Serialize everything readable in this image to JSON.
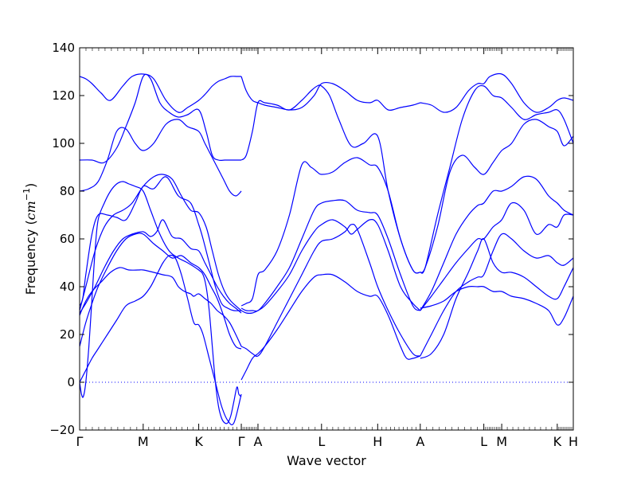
{
  "colors": {
    "band": "#0000ff",
    "zero_line": "#0000ff",
    "axes": "#000000",
    "background": "#ffffff"
  },
  "chart_data": {
    "type": "line",
    "title": "",
    "xlabel": "Wave vector",
    "ylabel_main": "Frequency (",
    "ylabel_unit": "cm",
    "ylabel_exp": "−1",
    "ylabel_close": ")",
    "ylim": [
      -20,
      140
    ],
    "yticks": [
      -20,
      0,
      20,
      40,
      60,
      80,
      100,
      120,
      140
    ],
    "xlim": [
      0,
      800
    ],
    "high_symmetry_points": [
      {
        "label": "Γ",
        "x": 0
      },
      {
        "label": "M",
        "x": 103
      },
      {
        "label": "K",
        "x": 193
      },
      {
        "label": "Γ",
        "x": 262
      },
      {
        "label": "A",
        "x": 289
      },
      {
        "label": "L",
        "x": 392
      },
      {
        "label": "H",
        "x": 483
      },
      {
        "label": "A",
        "x": 552
      },
      {
        "label": "L",
        "x": 655
      },
      {
        "label": "M",
        "x": 684
      },
      {
        "label": "K",
        "x": 774
      },
      {
        "label": "H",
        "x": 800
      }
    ],
    "zero_line": {
      "y": 0,
      "style": "dotted"
    },
    "series": [
      {
        "x": [
          0,
          10,
          20,
          35,
          50,
          70,
          85,
          103,
          120,
          140,
          160,
          175,
          193,
          205,
          215,
          225,
          235,
          245,
          255,
          262
        ],
        "y": [
          128,
          127,
          125,
          121,
          118,
          124,
          128,
          129,
          127,
          118,
          113,
          115,
          118,
          121,
          124,
          126,
          127,
          128,
          128,
          128
        ]
      },
      {
        "x": [
          0,
          20,
          40,
          60,
          75,
          90,
          103,
          115,
          130,
          145,
          160,
          175,
          193,
          205,
          215,
          225,
          235,
          245,
          255,
          262
        ],
        "y": [
          93,
          93,
          92,
          98,
          107,
          117,
          128,
          127,
          117,
          113,
          111,
          112,
          114,
          105,
          95,
          93,
          93,
          93,
          93,
          93
        ]
      },
      {
        "x": [
          0,
          15,
          30,
          45,
          60,
          75,
          90,
          103,
          120,
          140,
          160,
          175,
          193,
          203,
          213,
          223,
          233,
          243,
          253,
          262
        ],
        "y": [
          80,
          81,
          84,
          93,
          105,
          106,
          100,
          97,
          100,
          108,
          110,
          107,
          105,
          100,
          95,
          90,
          85,
          80,
          78,
          80
        ]
      },
      {
        "x": [
          0,
          5,
          10,
          20,
          30,
          45,
          60,
          75,
          90,
          103,
          120,
          140,
          160,
          180,
          193,
          200,
          210,
          220,
          230,
          240,
          250,
          262
        ],
        "y": [
          32,
          35,
          45,
          62,
          70,
          70,
          69,
          68,
          75,
          82,
          81,
          86,
          78,
          75,
          66,
          60,
          50,
          40,
          33,
          31,
          30,
          30
        ]
      },
      {
        "x": [
          0,
          10,
          25,
          40,
          55,
          70,
          85,
          103,
          120,
          135,
          150,
          165,
          180,
          193,
          205,
          215,
          225,
          235,
          245,
          262
        ],
        "y": [
          30,
          40,
          55,
          65,
          70,
          72,
          75,
          82,
          86,
          87,
          85,
          78,
          72,
          71,
          65,
          55,
          45,
          38,
          34,
          30
        ]
      },
      {
        "x": [
          0,
          10,
          25,
          40,
          55,
          70,
          85,
          103,
          115,
          125,
          135,
          150,
          165,
          180,
          193,
          203,
          213,
          223,
          233,
          243,
          253,
          262
        ],
        "y": [
          29,
          33,
          40,
          48,
          55,
          60,
          62,
          63,
          61,
          63,
          68,
          61,
          60,
          56,
          55,
          50,
          45,
          40,
          36,
          33,
          31,
          29
        ]
      },
      {
        "x": [
          0,
          10,
          20,
          30,
          45,
          60,
          75,
          90,
          103,
          120,
          135,
          150,
          165,
          180,
          193,
          203,
          213,
          223,
          233,
          243,
          253,
          262
        ],
        "y": [
          15,
          25,
          33,
          40,
          48,
          55,
          60,
          62,
          62,
          58,
          55,
          52,
          53,
          50,
          48,
          45,
          40,
          35,
          28,
          20,
          15,
          14
        ]
      },
      {
        "x": [
          0,
          10,
          20,
          35,
          50,
          65,
          80,
          95,
          103,
          120,
          135,
          150,
          160,
          170,
          180,
          185,
          193,
          203,
          213,
          223,
          233,
          243,
          253,
          262
        ],
        "y": [
          28,
          34,
          38,
          42,
          46,
          48,
          47,
          47,
          47,
          46,
          45,
          44,
          40,
          38,
          37,
          36,
          37,
          35,
          33,
          30,
          28,
          25,
          20,
          15
        ]
      },
      {
        "x": [
          0,
          10,
          20,
          30,
          45,
          60,
          75,
          90,
          103,
          115,
          125,
          135,
          145,
          155,
          165,
          175,
          185,
          193,
          200,
          210,
          220,
          230,
          240,
          250,
          262
        ],
        "y": [
          0,
          5,
          10,
          14,
          20,
          26,
          32,
          34,
          36,
          40,
          45,
          50,
          53,
          52,
          45,
          35,
          25,
          24,
          20,
          10,
          0,
          -10,
          -16,
          -17,
          -5
        ]
      },
      {
        "x": [
          0,
          3,
          6,
          10,
          15,
          20,
          25,
          30,
          40,
          50,
          60,
          70,
          80,
          90,
          103,
          115,
          130,
          145,
          160,
          175,
          193,
          200,
          205,
          210,
          215,
          220,
          225,
          230,
          235,
          240,
          245,
          250,
          255,
          258,
          262
        ],
        "y": [
          0,
          -5,
          -6,
          0,
          15,
          35,
          55,
          68,
          75,
          80,
          83,
          84,
          83,
          82,
          80,
          72,
          62,
          55,
          52,
          50,
          47,
          45,
          40,
          30,
          15,
          0,
          -10,
          -15,
          -17,
          -17,
          -14,
          -8,
          -2,
          -5,
          -6
        ]
      },
      {
        "x": [
          262,
          270,
          280,
          289,
          300,
          320,
          340,
          360,
          380,
          392,
          410,
          430,
          450,
          470,
          483,
          500,
          520,
          540,
          552
        ],
        "y": [
          128,
          122,
          118,
          117,
          116,
          115,
          114,
          115,
          120,
          125,
          125,
          122,
          118,
          117,
          118,
          114,
          115,
          116,
          117
        ]
      },
      {
        "x": [
          262,
          270,
          280,
          289,
          300,
          320,
          340,
          360,
          375,
          385,
          392,
          405,
          420,
          440,
          460,
          483,
          500,
          520,
          540,
          552
        ],
        "y": [
          93,
          95,
          105,
          117,
          117,
          116,
          114,
          118,
          122,
          124,
          124,
          120,
          110,
          99,
          100,
          103,
          80,
          60,
          47,
          46
        ]
      },
      {
        "x": [
          262,
          270,
          280,
          289,
          300,
          320,
          340,
          360,
          375,
          385,
          392,
          410,
          430,
          450,
          470,
          483,
          500,
          520,
          540,
          552
        ],
        "y": [
          32,
          33,
          35,
          45,
          47,
          55,
          70,
          91,
          90,
          88,
          87,
          88,
          92,
          94,
          91,
          90,
          80,
          60,
          47,
          46
        ]
      },
      {
        "x": [
          262,
          270,
          280,
          289,
          300,
          320,
          340,
          360,
          380,
          392,
          410,
          430,
          450,
          470,
          483,
          500,
          520,
          540,
          552
        ],
        "y": [
          31,
          30,
          30,
          30,
          33,
          40,
          48,
          60,
          72,
          75,
          76,
          76,
          72,
          71,
          70,
          60,
          45,
          32,
          30
        ]
      },
      {
        "x": [
          262,
          270,
          280,
          289,
          300,
          320,
          340,
          360,
          380,
          392,
          410,
          430,
          440,
          450,
          470,
          483,
          500,
          520,
          540,
          552
        ],
        "y": [
          30,
          29,
          29,
          30,
          32,
          38,
          45,
          55,
          63,
          66,
          68,
          65,
          62,
          64,
          68,
          66,
          55,
          40,
          33,
          30
        ]
      },
      {
        "x": [
          262,
          270,
          280,
          289,
          300,
          320,
          340,
          360,
          380,
          392,
          410,
          430,
          440,
          450,
          470,
          483,
          500,
          520,
          540,
          552
        ],
        "y": [
          15,
          14,
          12,
          11,
          15,
          25,
          35,
          45,
          55,
          59,
          60,
          63,
          66,
          64,
          50,
          40,
          30,
          20,
          12,
          11
        ]
      },
      {
        "x": [
          262,
          270,
          280,
          289,
          300,
          320,
          340,
          360,
          380,
          392,
          410,
          430,
          450,
          470,
          483,
          500,
          520,
          530,
          540,
          552
        ],
        "y": [
          1,
          5,
          10,
          12,
          15,
          22,
          30,
          38,
          44,
          45,
          45,
          42,
          38,
          36,
          36,
          28,
          15,
          10,
          10,
          11
        ]
      },
      {
        "x": [
          552,
          570,
          590,
          610,
          630,
          645,
          655,
          665,
          684,
          700,
          720,
          740,
          760,
          774,
          785,
          800
        ],
        "y": [
          117,
          116,
          113,
          115,
          122,
          125,
          125,
          128,
          129,
          125,
          117,
          113,
          115,
          118,
          119,
          118
        ]
      },
      {
        "x": [
          552,
          560,
          580,
          600,
          620,
          640,
          655,
          670,
          684,
          700,
          720,
          740,
          760,
          774,
          785,
          800
        ],
        "y": [
          46,
          48,
          70,
          90,
          110,
          122,
          124,
          120,
          119,
          115,
          110,
          112,
          113,
          114,
          110,
          100
        ]
      },
      {
        "x": [
          552,
          560,
          580,
          600,
          620,
          640,
          655,
          670,
          684,
          700,
          720,
          740,
          760,
          774,
          785,
          800
        ],
        "y": [
          46,
          48,
          65,
          88,
          95,
          90,
          87,
          92,
          97,
          100,
          108,
          110,
          107,
          105,
          99,
          103
        ]
      },
      {
        "x": [
          552,
          570,
          590,
          610,
          630,
          645,
          655,
          670,
          684,
          700,
          720,
          740,
          760,
          774,
          785,
          800
        ],
        "y": [
          30,
          38,
          50,
          62,
          70,
          74,
          75,
          80,
          80,
          82,
          86,
          85,
          78,
          75,
          72,
          70
        ]
      },
      {
        "x": [
          552,
          570,
          590,
          610,
          630,
          645,
          655,
          670,
          684,
          700,
          720,
          740,
          760,
          774,
          785,
          800
        ],
        "y": [
          30,
          36,
          43,
          50,
          56,
          60,
          60,
          65,
          68,
          75,
          72,
          62,
          66,
          65,
          70,
          70
        ]
      },
      {
        "x": [
          552,
          570,
          590,
          610,
          630,
          645,
          655,
          670,
          684,
          700,
          720,
          740,
          760,
          774,
          785,
          800
        ],
        "y": [
          11,
          20,
          30,
          38,
          42,
          44,
          45,
          55,
          62,
          60,
          55,
          52,
          53,
          50,
          49,
          52
        ]
      },
      {
        "x": [
          552,
          570,
          590,
          610,
          630,
          645,
          655,
          670,
          684,
          700,
          720,
          740,
          760,
          774,
          785,
          800
        ],
        "y": [
          10,
          12,
          20,
          35,
          46,
          55,
          60,
          50,
          46,
          46,
          44,
          40,
          36,
          35,
          40,
          48
        ]
      },
      {
        "x": [
          552,
          570,
          590,
          610,
          630,
          645,
          655,
          670,
          684,
          700,
          720,
          740,
          760,
          774,
          785,
          800
        ],
        "y": [
          31,
          32,
          34,
          38,
          40,
          40,
          40,
          38,
          38,
          36,
          35,
          33,
          30,
          24,
          27,
          36
        ]
      }
    ]
  }
}
